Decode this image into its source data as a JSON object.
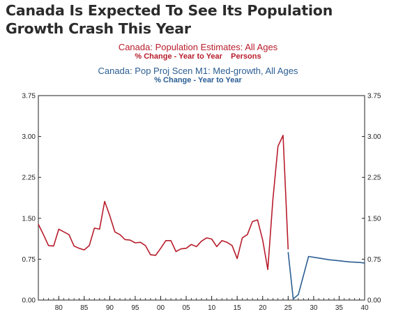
{
  "headline": "Canada Is Expected To See Its Population Growth Crash This Year",
  "colors": {
    "series_a": "#b71c2b",
    "series_b": "#2a5d93",
    "axis": "#222222"
  },
  "chart_data": {
    "type": "line",
    "title": "",
    "xlabel": "",
    "ylabel": "",
    "xlim": [
      1976,
      2040
    ],
    "ylim": [
      0,
      3.75
    ],
    "grid": false,
    "axes": "dual-y (left and right identical)",
    "x_tick_labels": [
      "80",
      "85",
      "90",
      "95",
      "00",
      "05",
      "10",
      "15",
      "20",
      "25",
      "30",
      "35",
      "40"
    ],
    "x_tick_values": [
      1980,
      1985,
      1990,
      1995,
      2000,
      2005,
      2010,
      2015,
      2020,
      2025,
      2030,
      2035,
      2040
    ],
    "y_tick_labels": [
      "0.00",
      "0.75",
      "1.50",
      "2.25",
      "3.00",
      "3.75"
    ],
    "y_tick_values": [
      0,
      0.75,
      1.5,
      2.25,
      3.0,
      3.75
    ],
    "series": [
      {
        "name": "Canada: Population Estimates: All Ages",
        "unit": "% Change - Year to Year    Persons",
        "color": "#b71c2b",
        "points": [
          [
            1976,
            1.39
          ],
          [
            1977,
            1.2
          ],
          [
            1978,
            1.0
          ],
          [
            1979,
            0.99
          ],
          [
            1980,
            1.3
          ],
          [
            1981,
            1.25
          ],
          [
            1982,
            1.2
          ],
          [
            1983,
            0.99
          ],
          [
            1984,
            0.95
          ],
          [
            1985,
            0.92
          ],
          [
            1986,
            1.0
          ],
          [
            1987,
            1.32
          ],
          [
            1988,
            1.3
          ],
          [
            1989,
            1.81
          ],
          [
            1990,
            1.55
          ],
          [
            1991,
            1.25
          ],
          [
            1992,
            1.2
          ],
          [
            1993,
            1.11
          ],
          [
            1994,
            1.1
          ],
          [
            1995,
            1.05
          ],
          [
            1996,
            1.06
          ],
          [
            1997,
            1.0
          ],
          [
            1998,
            0.83
          ],
          [
            1999,
            0.82
          ],
          [
            2000,
            0.95
          ],
          [
            2001,
            1.09
          ],
          [
            2002,
            1.09
          ],
          [
            2003,
            0.89
          ],
          [
            2004,
            0.94
          ],
          [
            2005,
            0.95
          ],
          [
            2006,
            1.02
          ],
          [
            2007,
            0.98
          ],
          [
            2008,
            1.08
          ],
          [
            2009,
            1.14
          ],
          [
            2010,
            1.12
          ],
          [
            2011,
            0.98
          ],
          [
            2012,
            1.09
          ],
          [
            2013,
            1.06
          ],
          [
            2014,
            1.0
          ],
          [
            2015,
            0.76
          ],
          [
            2016,
            1.14
          ],
          [
            2017,
            1.2
          ],
          [
            2018,
            1.44
          ],
          [
            2019,
            1.47
          ],
          [
            2020,
            1.1
          ],
          [
            2021,
            0.56
          ],
          [
            2022,
            1.84
          ],
          [
            2023,
            2.82
          ],
          [
            2024,
            3.02
          ],
          [
            2025,
            0.93
          ]
        ]
      },
      {
        "name": "Canada: Pop Proj Scen M1: Med-growth, All Ages",
        "unit": "% Change - Year to Year",
        "color": "#2a5d93",
        "points": [
          [
            2025,
            0.88
          ],
          [
            2026,
            0.02
          ],
          [
            2027,
            0.1
          ],
          [
            2029,
            0.8
          ],
          [
            2031,
            0.77
          ],
          [
            2033,
            0.74
          ],
          [
            2035,
            0.72
          ],
          [
            2037,
            0.7
          ],
          [
            2039,
            0.69
          ],
          [
            2040,
            0.68
          ]
        ]
      }
    ]
  }
}
